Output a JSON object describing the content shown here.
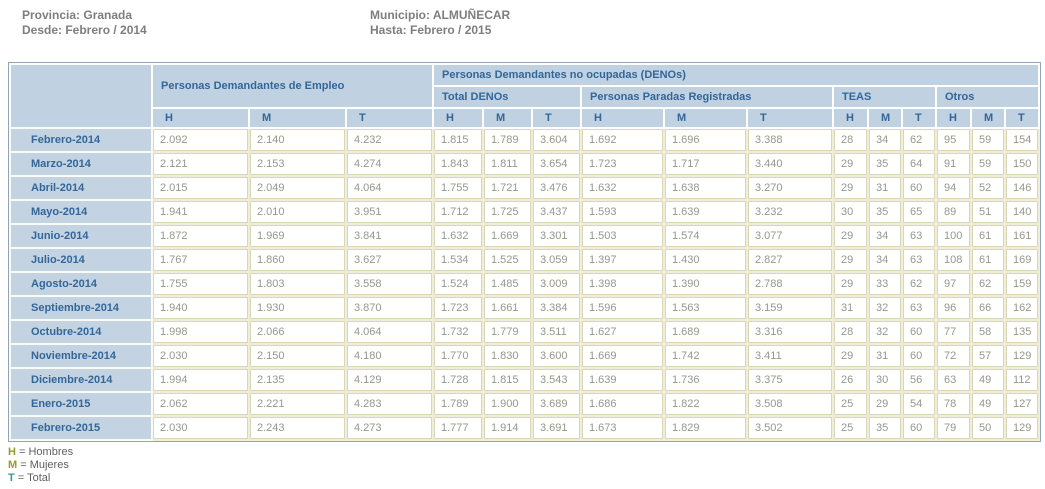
{
  "info": {
    "provincia": "Provincia: Granada",
    "desde": "Desde: Febrero / 2014",
    "municipio": "Municipio: ALMUÑECAR",
    "hasta": "Hasta: Febrero / 2015"
  },
  "table": {
    "corner": "",
    "group_empleo": "Personas Demandantes de Empleo",
    "group_denos": "Personas Demandantes no ocupadas (DENOs)",
    "subgroups": [
      "Total DENOs",
      "Personas Paradas Registradas",
      "TEAS",
      "Otros"
    ],
    "hmt": [
      "H",
      "M",
      "T"
    ],
    "rows": [
      {
        "month": "Febrero-2014",
        "values": [
          "2.092",
          "2.140",
          "4.232",
          "1.815",
          "1.789",
          "3.604",
          "1.692",
          "1.696",
          "3.388",
          "28",
          "34",
          "62",
          "95",
          "59",
          "154"
        ]
      },
      {
        "month": "Marzo-2014",
        "values": [
          "2.121",
          "2.153",
          "4.274",
          "1.843",
          "1.811",
          "3.654",
          "1.723",
          "1.717",
          "3.440",
          "29",
          "35",
          "64",
          "91",
          "59",
          "150"
        ]
      },
      {
        "month": "Abril-2014",
        "values": [
          "2.015",
          "2.049",
          "4.064",
          "1.755",
          "1.721",
          "3.476",
          "1.632",
          "1.638",
          "3.270",
          "29",
          "31",
          "60",
          "94",
          "52",
          "146"
        ]
      },
      {
        "month": "Mayo-2014",
        "values": [
          "1.941",
          "2.010",
          "3.951",
          "1.712",
          "1.725",
          "3.437",
          "1.593",
          "1.639",
          "3.232",
          "30",
          "35",
          "65",
          "89",
          "51",
          "140"
        ]
      },
      {
        "month": "Junio-2014",
        "values": [
          "1.872",
          "1.969",
          "3.841",
          "1.632",
          "1.669",
          "3.301",
          "1.503",
          "1.574",
          "3.077",
          "29",
          "34",
          "63",
          "100",
          "61",
          "161"
        ]
      },
      {
        "month": "Julio-2014",
        "values": [
          "1.767",
          "1.860",
          "3.627",
          "1.534",
          "1.525",
          "3.059",
          "1.397",
          "1.430",
          "2.827",
          "29",
          "34",
          "63",
          "108",
          "61",
          "169"
        ]
      },
      {
        "month": "Agosto-2014",
        "values": [
          "1.755",
          "1.803",
          "3.558",
          "1.524",
          "1.485",
          "3.009",
          "1.398",
          "1.390",
          "2.788",
          "29",
          "33",
          "62",
          "97",
          "62",
          "159"
        ]
      },
      {
        "month": "Septiembre-2014",
        "values": [
          "1.940",
          "1.930",
          "3.870",
          "1.723",
          "1.661",
          "3.384",
          "1.596",
          "1.563",
          "3.159",
          "31",
          "32",
          "63",
          "96",
          "66",
          "162"
        ]
      },
      {
        "month": "Octubre-2014",
        "values": [
          "1.998",
          "2.066",
          "4.064",
          "1.732",
          "1.779",
          "3.511",
          "1.627",
          "1.689",
          "3.316",
          "28",
          "32",
          "60",
          "77",
          "58",
          "135"
        ]
      },
      {
        "month": "Noviembre-2014",
        "values": [
          "2.030",
          "2.150",
          "4.180",
          "1.770",
          "1.830",
          "3.600",
          "1.669",
          "1.742",
          "3.411",
          "29",
          "31",
          "60",
          "72",
          "57",
          "129"
        ]
      },
      {
        "month": "Diciembre-2014",
        "values": [
          "1.994",
          "2.135",
          "4.129",
          "1.728",
          "1.815",
          "3.543",
          "1.639",
          "1.736",
          "3.375",
          "26",
          "30",
          "56",
          "63",
          "49",
          "112"
        ]
      },
      {
        "month": "Enero-2015",
        "values": [
          "2.062",
          "2.221",
          "4.283",
          "1.789",
          "1.900",
          "3.689",
          "1.686",
          "1.822",
          "3.508",
          "25",
          "29",
          "54",
          "78",
          "49",
          "127"
        ]
      },
      {
        "month": "Febrero-2015",
        "values": [
          "2.030",
          "2.243",
          "4.273",
          "1.777",
          "1.914",
          "3.691",
          "1.673",
          "1.829",
          "3.502",
          "25",
          "35",
          "60",
          "79",
          "50",
          "129"
        ]
      }
    ]
  },
  "legend": [
    {
      "key": "H",
      "rest": " = Hombres",
      "color": "#999933"
    },
    {
      "key": "M",
      "rest": " = Mujeres",
      "color": "#999933"
    },
    {
      "key": "T",
      "rest": " = Total",
      "color": "#339999"
    }
  ],
  "colors": {
    "header_bg": "#c0d1e1",
    "header_text": "#336699",
    "cell_border": "#d9d8b4",
    "cell_text": "#97978b",
    "table_gap_bg": "#f0eedb",
    "table_border": "#90a5b8"
  }
}
